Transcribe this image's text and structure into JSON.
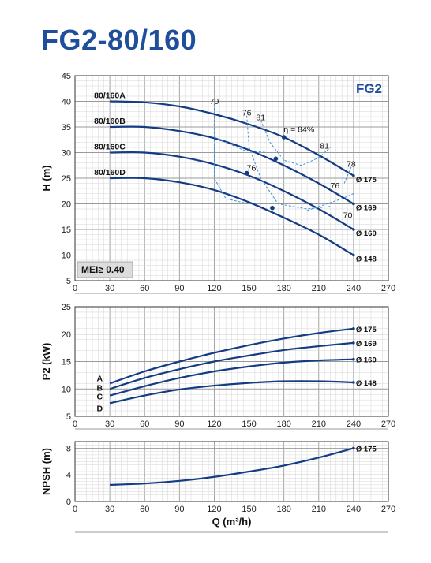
{
  "title": "FG2-80/160",
  "badge": "FG2",
  "mei_label": "MEI≥ 0.40",
  "colors": {
    "title": "#1f4e9c",
    "curve": "#143c82",
    "efficiency": "#3d8fd6",
    "grid": "#bdbdbd"
  },
  "chart_data": [
    {
      "type": "line",
      "name": "H",
      "ylabel": "H (m)",
      "xlim": [
        0,
        270
      ],
      "ylim": [
        5,
        45
      ],
      "xticks": [
        "0",
        "30",
        "60",
        "90",
        "120",
        "150",
        "180",
        "210",
        "240",
        "270"
      ],
      "yticks": [
        "5",
        "10",
        "15",
        "20",
        "25",
        "30",
        "35",
        "40",
        "45"
      ],
      "grid": true,
      "series": [
        {
          "name": "80/160A",
          "diameter": "Ø 175",
          "x": [
            30,
            60,
            90,
            120,
            150,
            180,
            210,
            240
          ],
          "y": [
            40,
            39.8,
            39,
            37.5,
            35.5,
            33,
            29.5,
            25.5
          ]
        },
        {
          "name": "80/160B",
          "diameter": "Ø 169",
          "x": [
            30,
            60,
            90,
            120,
            150,
            180,
            210,
            240
          ],
          "y": [
            35,
            35,
            34.2,
            32.8,
            30.5,
            27.5,
            24,
            20
          ]
        },
        {
          "name": "80/160C",
          "diameter": "Ø 160",
          "x": [
            30,
            60,
            90,
            120,
            150,
            180,
            210,
            240
          ],
          "y": [
            30,
            30,
            29.2,
            27.7,
            25.5,
            22.5,
            19,
            15
          ]
        },
        {
          "name": "80/160D",
          "diameter": "Ø 148",
          "x": [
            30,
            60,
            90,
            120,
            150,
            180,
            210,
            240
          ],
          "y": [
            25,
            25,
            24.2,
            22.7,
            20.3,
            17.3,
            14,
            10
          ]
        }
      ],
      "efficiency_labels": [
        {
          "text": "70",
          "x": 120,
          "y": 39.5
        },
        {
          "text": "76",
          "x": 148,
          "y": 37.2
        },
        {
          "text": "81",
          "x": 160,
          "y": 36.3
        },
        {
          "text": "η = 84%",
          "x": 193,
          "y": 34
        },
        {
          "text": "81",
          "x": 215,
          "y": 30.8
        },
        {
          "text": "78",
          "x": 238,
          "y": 27.2
        },
        {
          "text": "76",
          "x": 152,
          "y": 26.5
        },
        {
          "text": "76",
          "x": 224,
          "y": 23
        },
        {
          "text": "70",
          "x": 235,
          "y": 17.2
        }
      ],
      "efficiency_points": [
        {
          "x": 180,
          "y": 33
        },
        {
          "x": 173,
          "y": 28.8
        },
        {
          "x": 148,
          "y": 26
        },
        {
          "x": 170,
          "y": 19.2
        }
      ]
    },
    {
      "type": "line",
      "name": "P2",
      "ylabel": "P2 (kW)",
      "xlim": [
        0,
        270
      ],
      "ylim": [
        5,
        25
      ],
      "xticks": [
        "0",
        "30",
        "60",
        "90",
        "120",
        "150",
        "180",
        "210",
        "240",
        "270"
      ],
      "yticks": [
        "5",
        "10",
        "15",
        "20",
        "25"
      ],
      "grid": true,
      "series": [
        {
          "name": "A",
          "diameter": "Ø 175",
          "x": [
            30,
            60,
            90,
            120,
            150,
            180,
            210,
            240
          ],
          "y": [
            11,
            13.2,
            15,
            16.6,
            18,
            19.2,
            20.2,
            21
          ]
        },
        {
          "name": "B",
          "diameter": "Ø 169",
          "x": [
            30,
            60,
            90,
            120,
            150,
            180,
            210,
            240
          ],
          "y": [
            10,
            12,
            13.6,
            15,
            16.1,
            17.1,
            17.8,
            18.4
          ]
        },
        {
          "name": "C",
          "diameter": "Ø 160",
          "x": [
            30,
            60,
            90,
            120,
            150,
            180,
            210,
            240
          ],
          "y": [
            8.8,
            10.5,
            12,
            13.2,
            14.1,
            14.8,
            15.2,
            15.4
          ]
        },
        {
          "name": "D",
          "diameter": "Ø 148",
          "x": [
            30,
            60,
            90,
            120,
            150,
            180,
            210,
            240
          ],
          "y": [
            7.4,
            8.8,
            9.9,
            10.6,
            11.1,
            11.4,
            11.4,
            11.2
          ]
        }
      ]
    },
    {
      "type": "line",
      "name": "NPSH",
      "ylabel": "NPSH (m)",
      "xlabel": "Q (m³/h)",
      "xlim": [
        0,
        270
      ],
      "ylim": [
        0,
        9
      ],
      "xticks": [
        "0",
        "30",
        "60",
        "90",
        "120",
        "150",
        "180",
        "210",
        "240",
        "270"
      ],
      "yticks": [
        "0",
        "4",
        "8"
      ],
      "grid": true,
      "series": [
        {
          "name": "",
          "diameter": "Ø 175",
          "x": [
            30,
            60,
            90,
            120,
            150,
            180,
            210,
            240
          ],
          "y": [
            2.5,
            2.7,
            3.1,
            3.7,
            4.5,
            5.4,
            6.6,
            8.0
          ]
        }
      ]
    }
  ]
}
